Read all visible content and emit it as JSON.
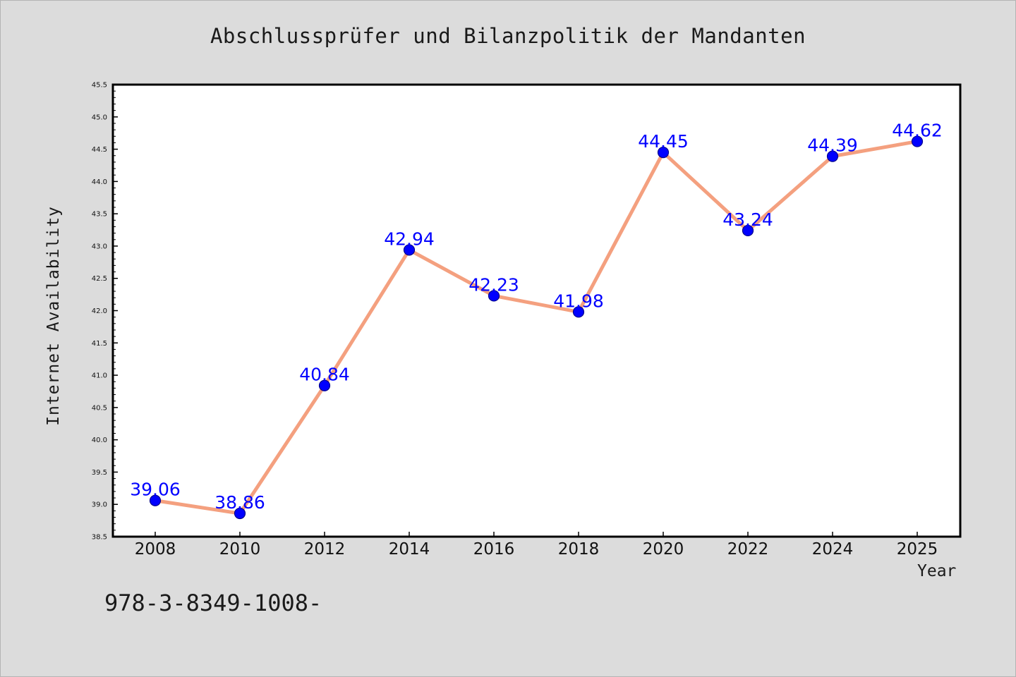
{
  "chart_data": {
    "type": "line",
    "title": "Abschlussprüfer und Bilanzpolitik der Mandanten",
    "xlabel": "Year",
    "ylabel": "Internet Availability",
    "categories": [
      "2008",
      "2010",
      "2012",
      "2014",
      "2016",
      "2018",
      "2020",
      "2022",
      "2024",
      "2025"
    ],
    "series": [
      {
        "values": [
          39.06,
          38.86,
          40.84,
          42.94,
          42.23,
          41.98,
          44.45,
          43.24,
          44.39,
          44.62
        ],
        "labels": [
          "39.06",
          "38.86",
          "40.84",
          "42.94",
          "42.23",
          "41.98",
          "44.45",
          "43.24",
          "44.39",
          "44.62"
        ],
        "line_color": "#f4a07f",
        "marker_color": "#0000ff"
      }
    ],
    "ylim": [
      38.5,
      45.5
    ],
    "yticks": [
      "38.5",
      "39.0",
      "39.5",
      "40.0",
      "40.5",
      "41.0",
      "41.5",
      "42.0",
      "42.5",
      "43.0",
      "43.5",
      "44.0",
      "44.5",
      "45.0",
      "45.5"
    ],
    "grid": false,
    "legend": false
  },
  "footer": {
    "text": "978-3-8349-1008-"
  }
}
